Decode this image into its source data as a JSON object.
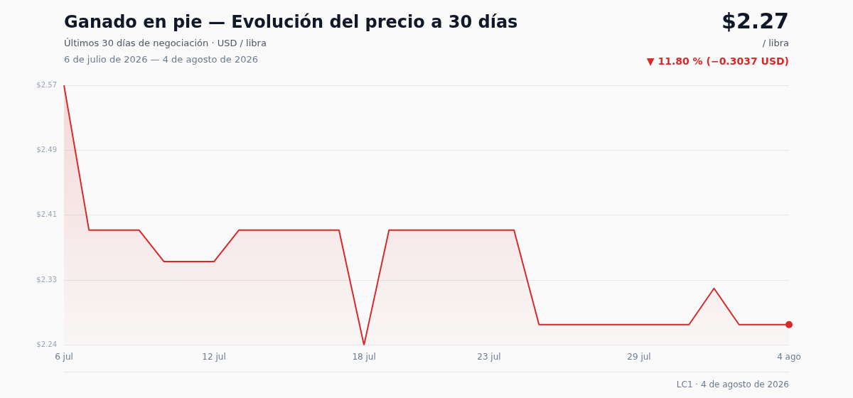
{
  "chart_data": {
    "type": "area",
    "title": "Ganado en pie — Evolución del precio a 30 días",
    "subtitle": "Últimos 30 días de negociación · USD / libra",
    "annotations": [
      "6 de julio de 2026 — 4 de agosto de 2026",
      "$2.27",
      "/ libra",
      "▼ 11.80 % (−0.3037 USD)",
      "LC1 · 4 de agosto de 2026"
    ],
    "categories": [
      "6 jul",
      null,
      null,
      null,
      null,
      null,
      "12 jul",
      null,
      null,
      null,
      null,
      null,
      "18 jul",
      null,
      null,
      null,
      null,
      "23 jul",
      null,
      null,
      null,
      null,
      null,
      "29 jul",
      null,
      null,
      null,
      null,
      null,
      "4 ago"
    ],
    "series": [
      {
        "color": "#d62a2a",
        "values": [
          2.5737,
          2.39,
          2.39,
          2.39,
          2.35,
          2.35,
          2.35,
          2.39,
          2.39,
          2.39,
          2.39,
          2.39,
          2.244,
          2.39,
          2.39,
          2.39,
          2.39,
          2.39,
          2.39,
          2.27,
          2.27,
          2.27,
          2.27,
          2.27,
          2.27,
          2.27,
          2.316,
          2.27,
          2.27,
          2.27
        ]
      }
    ],
    "ylim": [
      2.244,
      2.5737
    ],
    "yticks": [
      {
        "value": 2.244,
        "label": "$2.24"
      },
      {
        "value": 2.3264,
        "label": "$2.33"
      },
      {
        "value": 2.4089,
        "label": "$2.41"
      },
      {
        "value": 2.4913,
        "label": "$2.49"
      },
      {
        "value": 2.5737,
        "label": "$2.57"
      }
    ],
    "grid": "y",
    "legend": false
  }
}
